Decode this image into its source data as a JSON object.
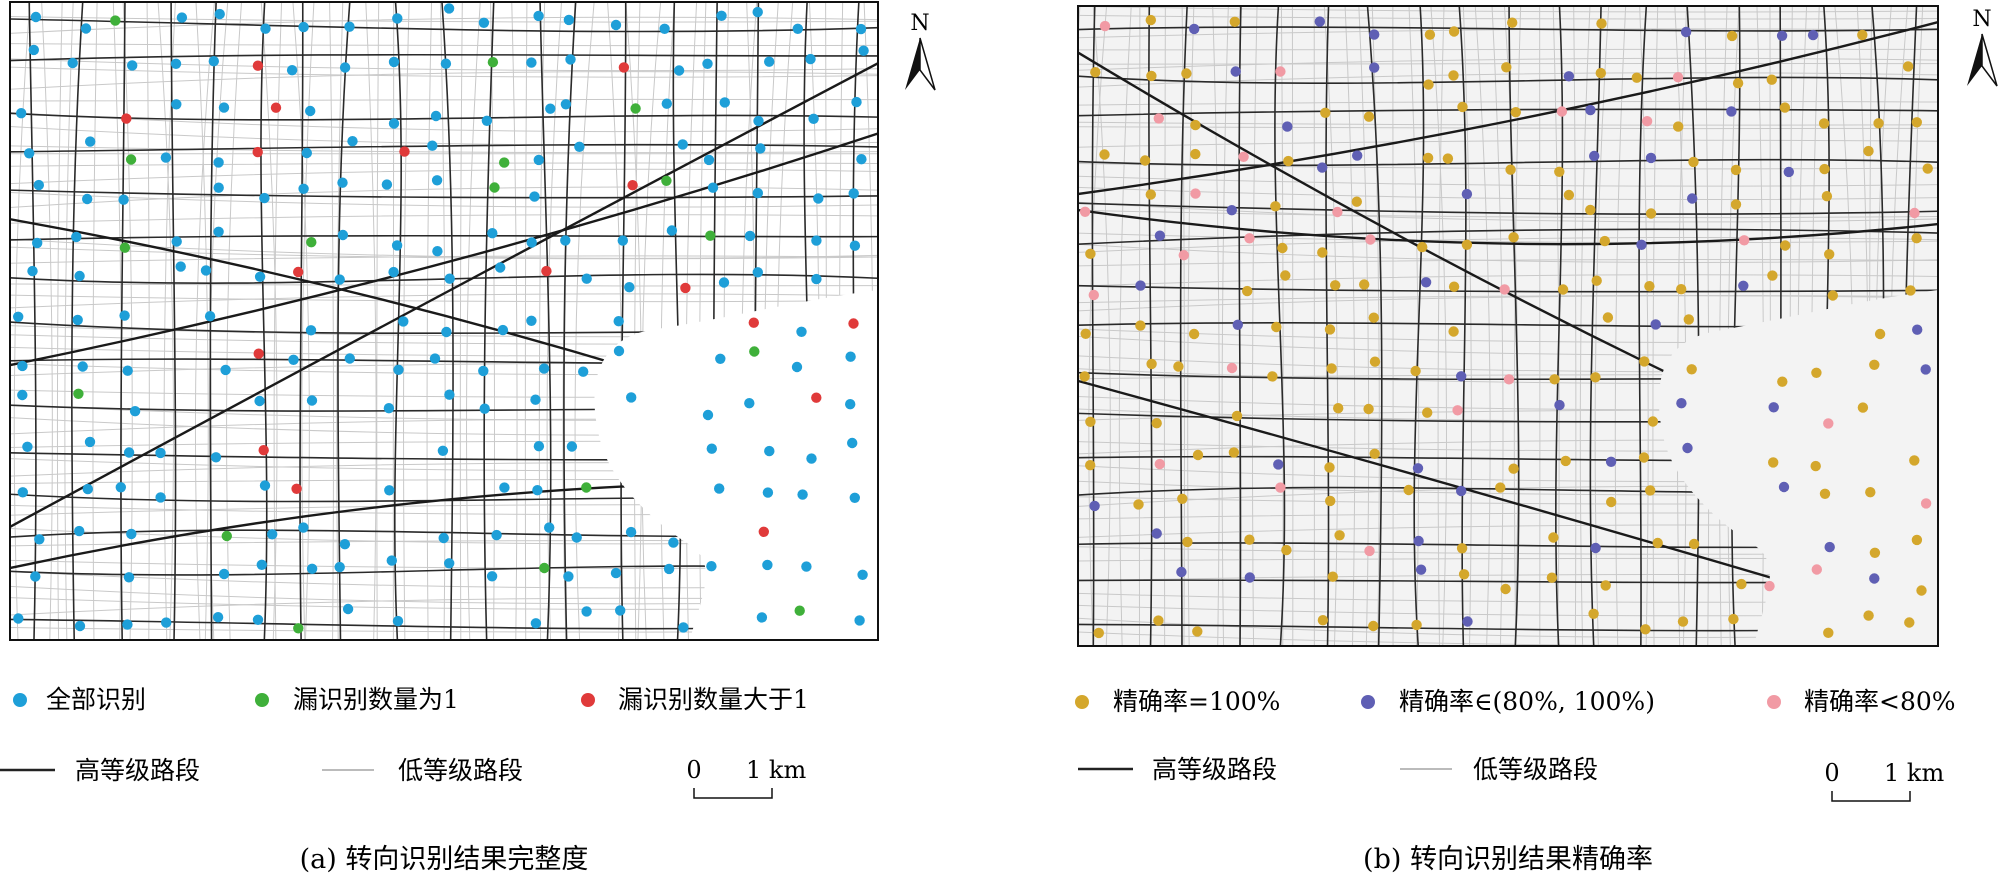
{
  "panels": [
    {
      "id": "a",
      "caption": "(a) 转向识别结果完整度",
      "north_label": "N",
      "legend_points": [
        {
          "label": "全部识别",
          "color": "#1e9fd8"
        },
        {
          "label": "漏识别数量为1",
          "color": "#3fb03a"
        },
        {
          "label": "漏识别数量大于1",
          "color": "#e03a3a"
        }
      ],
      "legend_lines": [
        {
          "label": "高等级路段",
          "color": "#222222"
        },
        {
          "label": "低等级路段",
          "color": "#bbbbbb"
        }
      ],
      "scale_bar": {
        "start": "0",
        "end": "1 km"
      },
      "map_background": "#ffffff"
    },
    {
      "id": "b",
      "caption": "(b) 转向识别结果精确率",
      "north_label": "N",
      "legend_points": [
        {
          "label": "精确率=100%",
          "color": "#d4a72c"
        },
        {
          "label": "精确率∈(80%, 100%)",
          "color": "#5f5fb4"
        },
        {
          "label": "精确率<80%",
          "color": "#f19aa4"
        }
      ],
      "legend_lines": [
        {
          "label": "高等级路段",
          "color": "#222222"
        },
        {
          "label": "低等级路段",
          "color": "#bbbbbb"
        }
      ],
      "scale_bar": {
        "start": "0",
        "end": "1 km"
      },
      "map_background": "#f3f3f3"
    }
  ]
}
